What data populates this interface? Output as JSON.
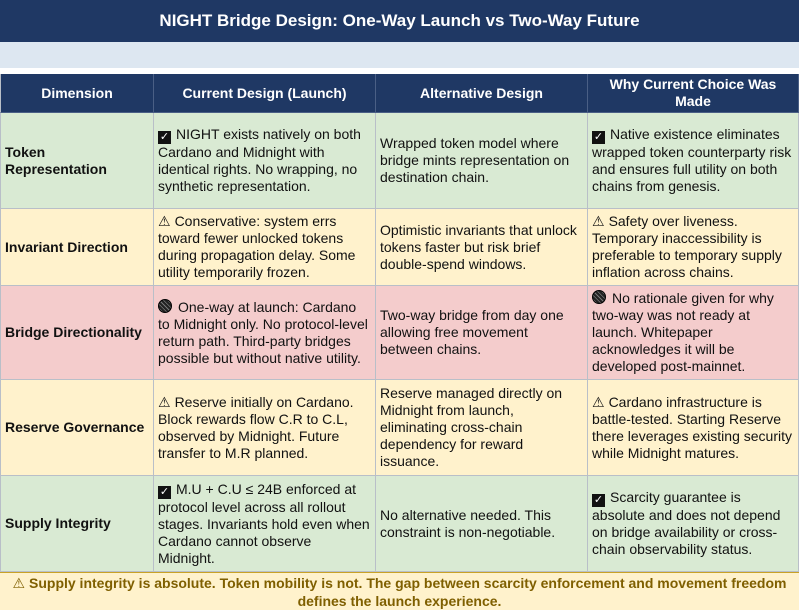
{
  "title": "NIGHT Bridge Design: One-Way Launch vs Two-Way Future",
  "headers": [
    "Dimension",
    "Current Design (Launch)",
    "Alternative Design",
    "Why Current Choice Was Made"
  ],
  "rows": [
    {
      "color": "#d9ead3",
      "dimension": "Token Representation",
      "current_icon": "check-icon",
      "current": "NIGHT exists natively on both Cardano and Midnight with identical rights. No wrapping, no synthetic representation.",
      "alternative": "Wrapped token model where bridge mints representation on destination chain.",
      "why_icon": "check-icon",
      "why": "Native existence eliminates wrapped token counterparty risk and ensures full utility on both chains from genesis."
    },
    {
      "color": "#fff2cc",
      "dimension": "Invariant Direction",
      "current_icon": "warning-icon",
      "current": "Conservative: system errs toward fewer unlocked tokens during propagation delay. Some utility temporarily frozen.",
      "alternative": "Optimistic invariants that unlock tokens faster but risk brief double-spend windows.",
      "why_icon": "warning-icon",
      "why": "Safety over liveness. Temporary inaccessibility is preferable to temporary supply inflation across chains."
    },
    {
      "color": "#f4cccc",
      "dimension": "Bridge Directionality",
      "current_icon": "blocked-circle-icon",
      "current": "One-way at launch: Cardano to Midnight only. No protocol-level return path. Third-party bridges possible but without native utility.",
      "alternative": "Two-way bridge from day one allowing free movement between chains.",
      "why_icon": "blocked-circle-icon",
      "why": "No rationale given for why two-way was not ready at launch. Whitepaper acknowledges it will be developed post-mainnet."
    },
    {
      "color": "#fff2cc",
      "dimension": "Reserve Governance",
      "current_icon": "warning-icon",
      "current": "Reserve initially on Cardano. Block rewards flow C.R to C.L, observed by Midnight. Future transfer to M.R planned.",
      "alternative": "Reserve managed directly on Midnight from launch, eliminating cross-chain dependency for reward issuance.",
      "why_icon": "warning-icon",
      "why": "Cardano infrastructure is battle-tested. Starting Reserve there leverages existing security while Midnight matures."
    },
    {
      "color": "#d9ead3",
      "dimension": "Supply Integrity",
      "current_icon": "check-icon",
      "current": "M.U + C.U ≤ 24B enforced at protocol level across all rollout stages. Invariants hold even when Cardano cannot observe Midnight.",
      "alternative": "No alternative needed. This constraint is non-negotiable.",
      "why_icon": "check-icon",
      "why": "Scarcity guarantee is absolute and does not depend on bridge availability or cross-chain observability status."
    }
  ],
  "footer_icon": "warning-icon",
  "footer": "Supply integrity is absolute. Token mobility is not. The gap between scarcity enforcement and movement freedom defines the launch experience."
}
